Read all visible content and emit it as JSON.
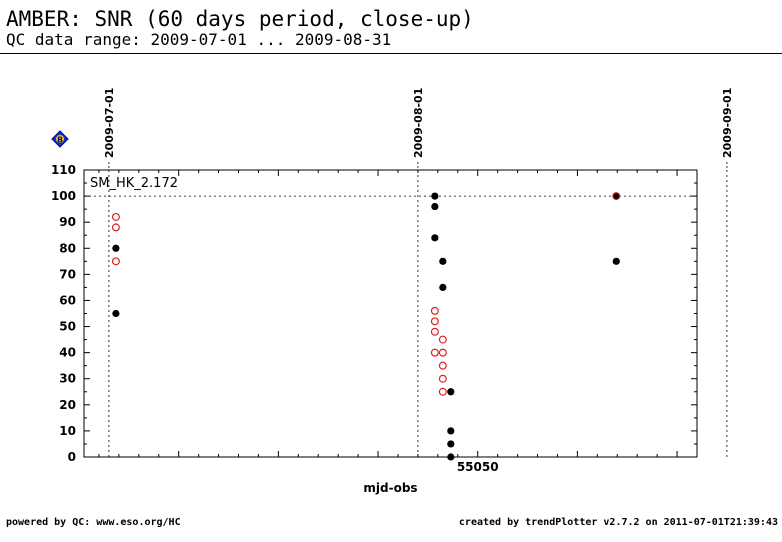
{
  "header": {
    "title": "AMBER: SNR (60 days period, close-up)",
    "subtitle": "QC data range: 2009-07-01 ... 2009-08-31"
  },
  "footer": {
    "left": "powered by QC: www.eso.org/HC",
    "right": "created by trendPlotter v2.7.2 on 2011-07-01T21:39:43"
  },
  "chart_data": {
    "type": "scatter",
    "panel_label": "SM_HK_2.172",
    "badge": "B",
    "xlabel": "mjd-obs",
    "ylabel": "",
    "xlim": [
      55010.5,
      55072
    ],
    "ylim": [
      0,
      110
    ],
    "x_ticks_labeled": [
      {
        "value": 55050,
        "label": "55050"
      }
    ],
    "y_ticks": [
      0,
      10,
      20,
      30,
      40,
      50,
      60,
      70,
      80,
      90,
      100,
      110
    ],
    "reference_line_y": 100,
    "date_markers": [
      {
        "x": 55013,
        "label": "2009-07-01"
      },
      {
        "x": 55044,
        "label": "2009-08-01"
      },
      {
        "x": 55075,
        "label": "2009-09-01"
      }
    ],
    "series": [
      {
        "style": "filled",
        "color": "#000000",
        "points": [
          {
            "x": 55013.7,
            "y": 80
          },
          {
            "x": 55013.7,
            "y": 55
          },
          {
            "x": 55045.7,
            "y": 100
          },
          {
            "x": 55045.7,
            "y": 96
          },
          {
            "x": 55045.7,
            "y": 84
          },
          {
            "x": 55046.5,
            "y": 75
          },
          {
            "x": 55046.5,
            "y": 65
          },
          {
            "x": 55047.3,
            "y": 25
          },
          {
            "x": 55047.3,
            "y": 10
          },
          {
            "x": 55047.3,
            "y": 5
          },
          {
            "x": 55047.3,
            "y": 0
          },
          {
            "x": 55063.9,
            "y": 100
          },
          {
            "x": 55063.9,
            "y": 75
          }
        ]
      },
      {
        "style": "open",
        "color": "#dd2222",
        "points": [
          {
            "x": 55013.7,
            "y": 92
          },
          {
            "x": 55013.7,
            "y": 88
          },
          {
            "x": 55013.7,
            "y": 75
          },
          {
            "x": 55045.7,
            "y": 56
          },
          {
            "x": 55045.7,
            "y": 52
          },
          {
            "x": 55045.7,
            "y": 48
          },
          {
            "x": 55045.7,
            "y": 40
          },
          {
            "x": 55046.5,
            "y": 45
          },
          {
            "x": 55046.5,
            "y": 40
          },
          {
            "x": 55046.5,
            "y": 35
          },
          {
            "x": 55046.5,
            "y": 30
          },
          {
            "x": 55046.5,
            "y": 25
          },
          {
            "x": 55063.9,
            "y": 100
          }
        ]
      }
    ]
  }
}
